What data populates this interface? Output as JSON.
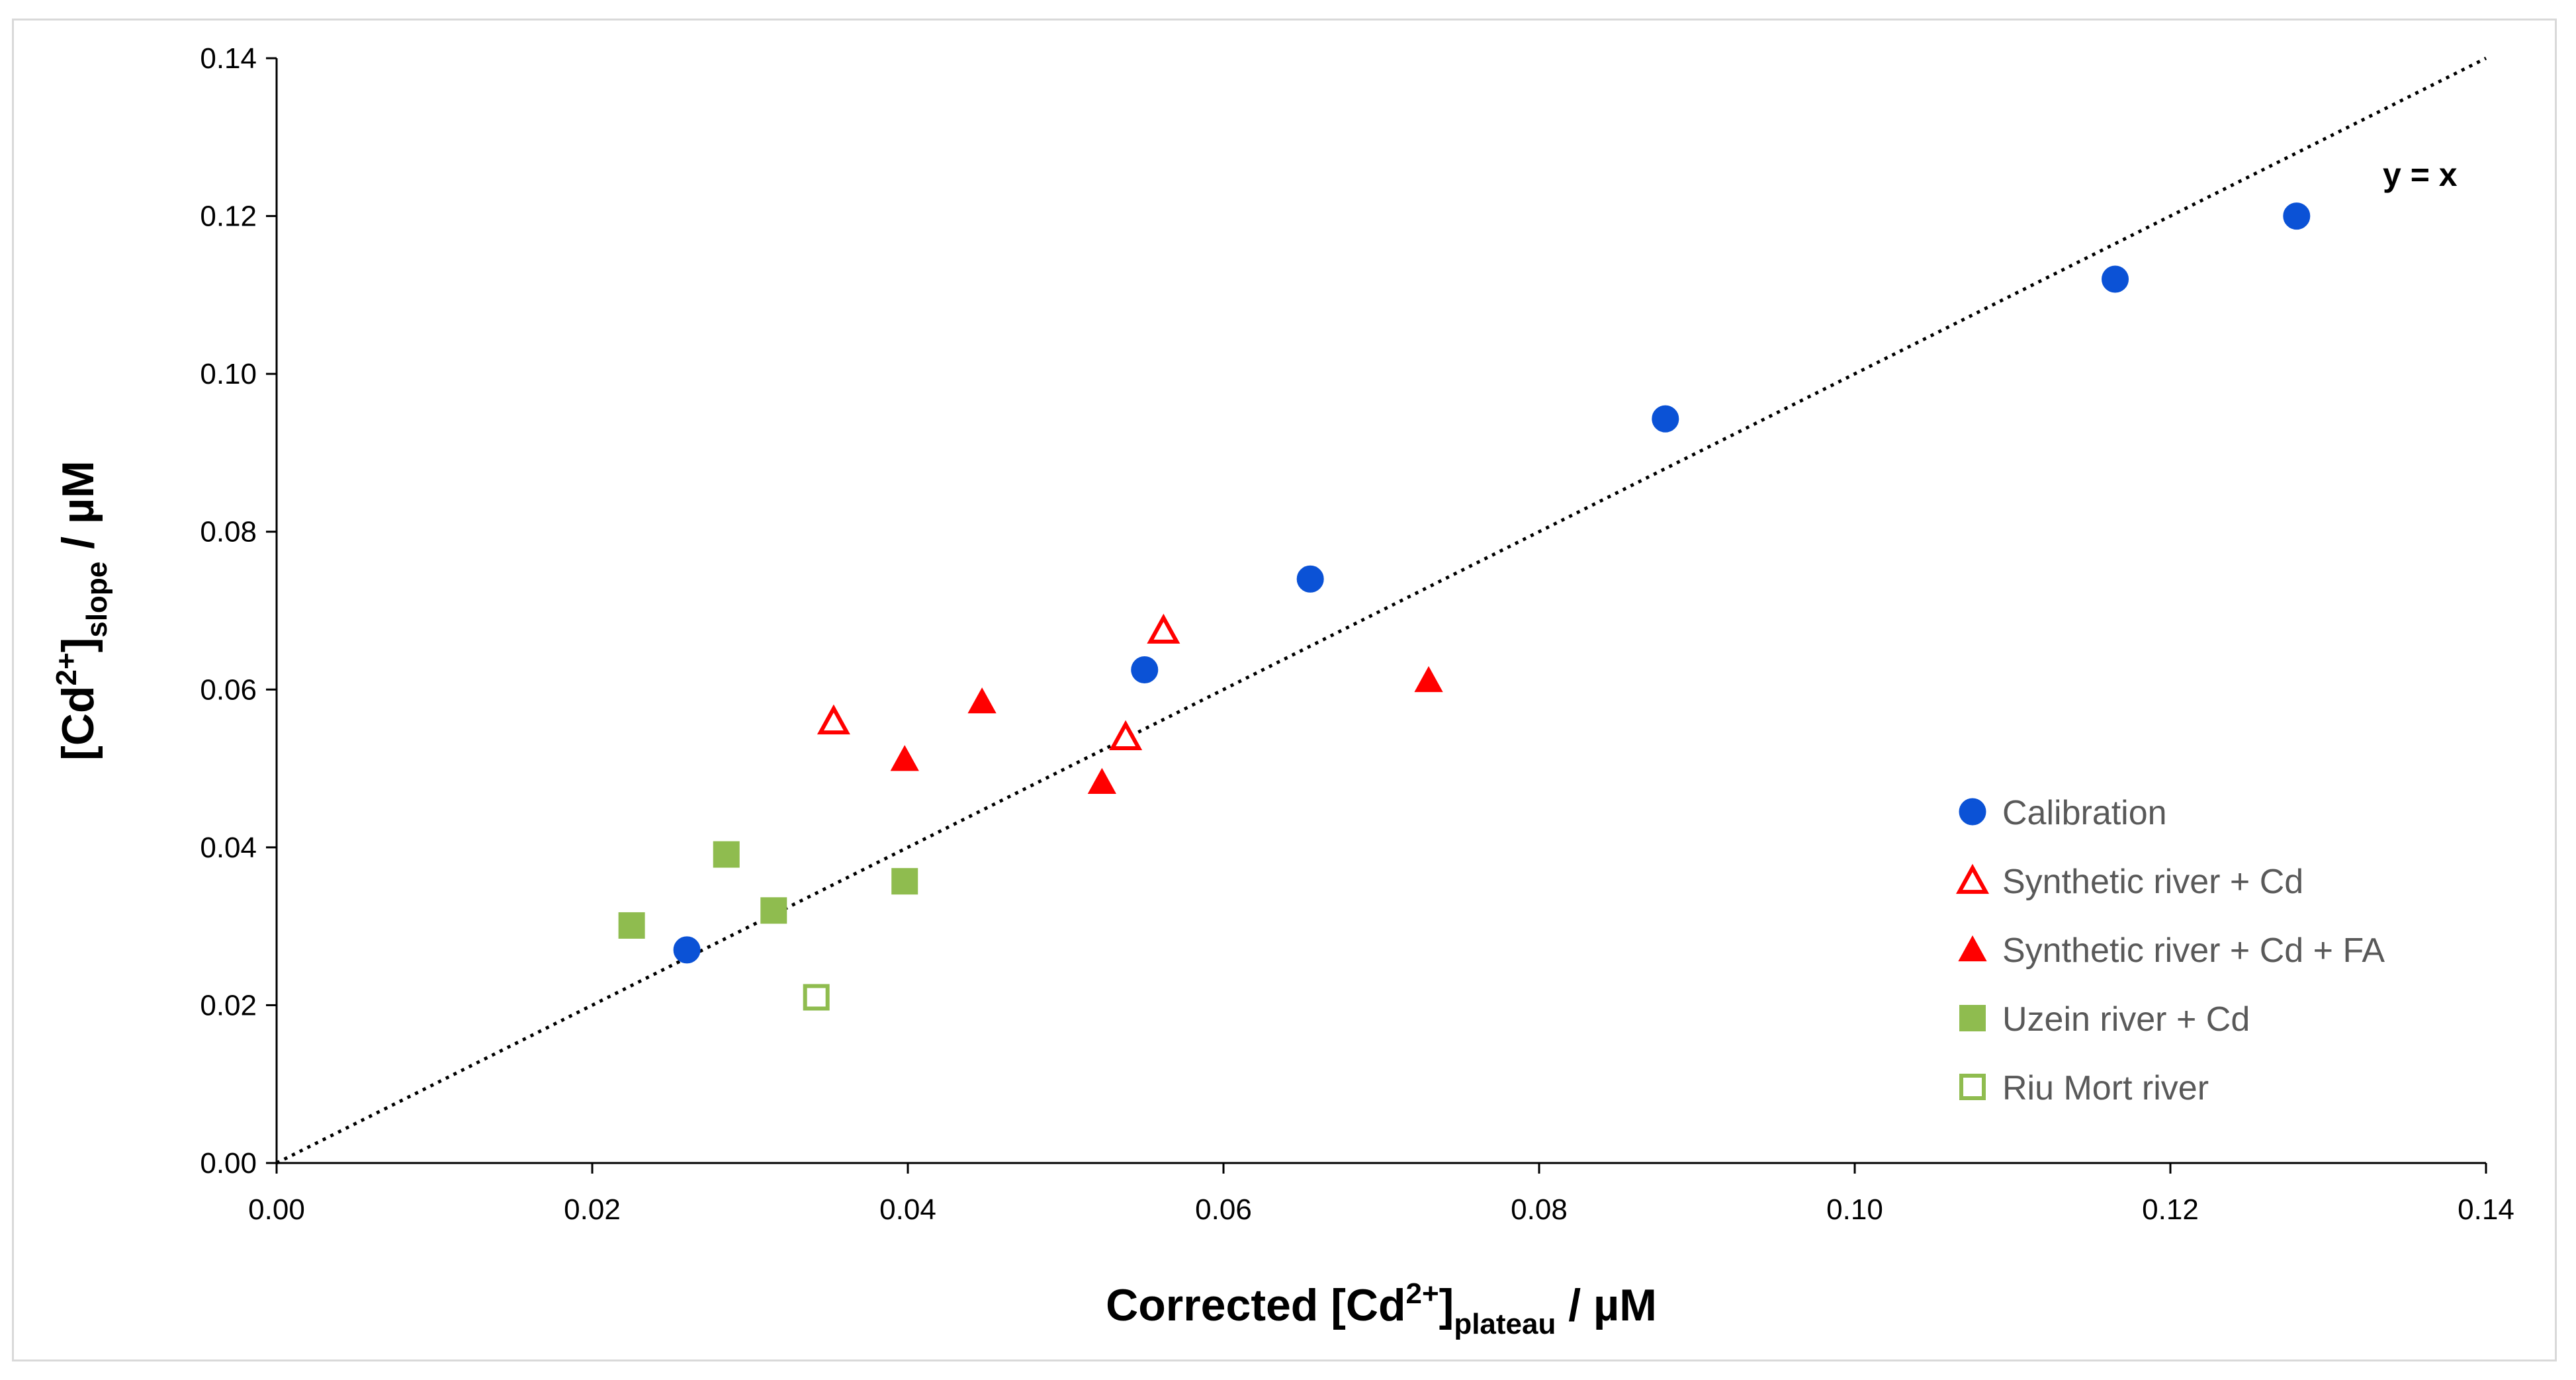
{
  "chart_data": {
    "type": "scatter",
    "title": "",
    "xlabel": {
      "pre": "Corrected [Cd",
      "sup": "2+",
      "post": "]",
      "sub": "plateau",
      "tail": " / µM"
    },
    "ylabel": {
      "pre": "[Cd",
      "sup": "2+",
      "post": "]",
      "sub": "slope",
      "tail": " / µM"
    },
    "xlim": [
      0,
      0.14
    ],
    "ylim": [
      0,
      0.14
    ],
    "xticks": [
      "0.00",
      "0.02",
      "0.04",
      "0.06",
      "0.08",
      "0.10",
      "0.12",
      "0.14"
    ],
    "yticks": [
      "0.00",
      "0.02",
      "0.04",
      "0.06",
      "0.08",
      "0.10",
      "0.12",
      "0.14"
    ],
    "grid": false,
    "legend_position": "bottom-right",
    "reference_line": {
      "label": "y = x",
      "x": [
        0,
        0.14
      ],
      "y": [
        0,
        0.14
      ],
      "style": "dotted",
      "color": "#000000"
    },
    "series": [
      {
        "name": "Calibration",
        "marker": "circle",
        "filled": true,
        "color": "#0b52d6",
        "points": [
          [
            0.026,
            0.027
          ],
          [
            0.055,
            0.0625
          ],
          [
            0.0655,
            0.074
          ],
          [
            0.088,
            0.0943
          ],
          [
            0.1165,
            0.112
          ],
          [
            0.128,
            0.12
          ]
        ]
      },
      {
        "name": "Synthetic river + Cd",
        "marker": "triangle",
        "filled": false,
        "color": "#ff0000",
        "points": [
          [
            0.0353,
            0.056
          ],
          [
            0.0538,
            0.054
          ],
          [
            0.0562,
            0.0675
          ]
        ]
      },
      {
        "name": "Synthetic river + Cd + FA",
        "marker": "triangle",
        "filled": true,
        "color": "#ff0000",
        "points": [
          [
            0.0398,
            0.0512
          ],
          [
            0.0447,
            0.0585
          ],
          [
            0.0523,
            0.0483
          ],
          [
            0.073,
            0.0612
          ]
        ]
      },
      {
        "name": "Uzein river + Cd",
        "marker": "square",
        "filled": true,
        "color": "#8fbc4f",
        "points": [
          [
            0.0225,
            0.0301
          ],
          [
            0.0285,
            0.0391
          ],
          [
            0.0315,
            0.032
          ],
          [
            0.0398,
            0.0357
          ]
        ]
      },
      {
        "name": "Riu Mort river",
        "marker": "square",
        "filled": false,
        "color": "#8fbc4f",
        "points": [
          [
            0.0342,
            0.021
          ]
        ]
      }
    ]
  }
}
